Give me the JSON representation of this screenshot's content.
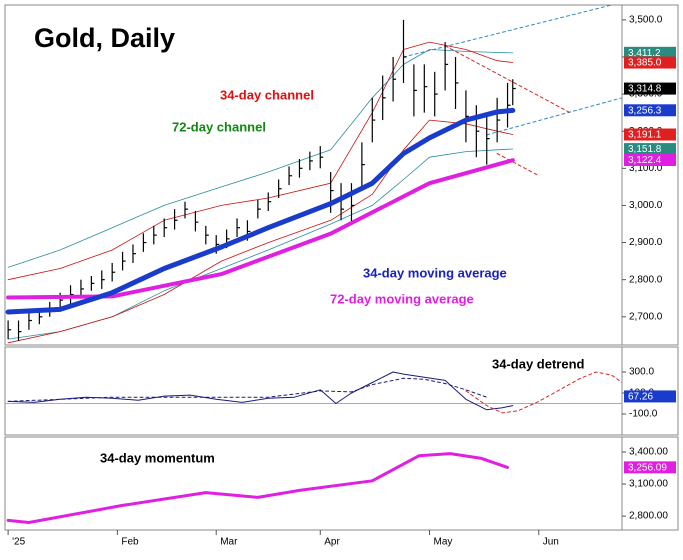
{
  "chart_data": [
    {
      "type": "ohlc",
      "title": "Gold, Daily",
      "ylim": [
        2624,
        3540
      ],
      "yticks": [
        {
          "value": 2700,
          "label": "2,700.0"
        },
        {
          "value": 2800,
          "label": "2,800.0"
        },
        {
          "value": 2900,
          "label": "2,900.0"
        },
        {
          "value": 3000,
          "label": "3,000.0"
        },
        {
          "value": 3100,
          "label": "3,100.0"
        },
        {
          "value": 3200,
          "label": "3,200.0"
        },
        {
          "value": 3300,
          "label": "3,300.0"
        },
        {
          "value": 3400,
          "label": "3,400.0"
        },
        {
          "value": 3500,
          "label": "3,500.0"
        }
      ],
      "price": {
        "color": "#000000",
        "x": [
          0,
          2,
          4,
          6,
          8,
          10,
          12,
          14,
          16,
          18,
          20,
          22,
          24,
          26,
          28,
          30,
          32,
          34,
          36,
          38,
          40,
          42,
          44,
          46,
          48,
          50,
          52,
          54,
          56,
          58,
          60,
          62,
          64,
          66,
          68,
          70,
          72,
          74,
          76,
          78,
          80,
          82,
          84,
          86,
          88,
          90,
          92,
          94,
          96,
          97
        ],
        "high": [
          2690,
          2690,
          2710,
          2720,
          2740,
          2765,
          2785,
          2800,
          2810,
          2825,
          2845,
          2875,
          2895,
          2925,
          2945,
          2965,
          2990,
          3010,
          2985,
          2945,
          2920,
          2935,
          2965,
          2960,
          3015,
          3035,
          3070,
          3105,
          3125,
          3145,
          3160,
          3090,
          3060,
          3060,
          3170,
          3290,
          3350,
          3400,
          3500,
          3380,
          3380,
          3360,
          3440,
          3400,
          3310,
          3270,
          3240,
          3290,
          3330,
          3340
        ],
        "low": [
          2640,
          2635,
          2665,
          2680,
          2700,
          2725,
          2735,
          2750,
          2770,
          2775,
          2795,
          2825,
          2845,
          2875,
          2895,
          2915,
          2935,
          2965,
          2930,
          2895,
          2870,
          2885,
          2915,
          2905,
          2965,
          2985,
          3020,
          3055,
          3075,
          3095,
          3100,
          2980,
          2960,
          2950,
          3050,
          3170,
          3230,
          3280,
          3330,
          3240,
          3250,
          3240,
          3310,
          3260,
          3170,
          3130,
          3110,
          3170,
          3210,
          3270
        ],
        "close": [
          2665,
          2660,
          2690,
          2700,
          2720,
          2745,
          2760,
          2775,
          2790,
          2800,
          2820,
          2850,
          2870,
          2900,
          2920,
          2940,
          2960,
          2990,
          2955,
          2920,
          2895,
          2910,
          2940,
          2930,
          2990,
          3010,
          3045,
          3080,
          3100,
          3120,
          3130,
          3040,
          2990,
          3000,
          3110,
          3230,
          3290,
          3340,
          3400,
          3310,
          3320,
          3300,
          3380,
          3330,
          3240,
          3200,
          3180,
          3230,
          3270,
          3315
        ]
      },
      "series": [
        {
          "color": "#2a8c9e",
          "width": 0.8,
          "dashed": false,
          "x": [
            0,
            10,
            20,
            30,
            41,
            50,
            62,
            70,
            76,
            81,
            88,
            94,
            97
          ],
          "values": [
            2833,
            2880,
            2940,
            3000,
            3050,
            3090,
            3150,
            3290,
            3380,
            3420,
            3415,
            3412,
            3411
          ]
        },
        {
          "color": "#2a8c9e",
          "width": 0.8,
          "dashed": false,
          "x": [
            0,
            10,
            20,
            30,
            41,
            50,
            62,
            70,
            76,
            81,
            88,
            94,
            97
          ],
          "values": [
            2640,
            2660,
            2700,
            2770,
            2830,
            2880,
            2950,
            3000,
            3070,
            3130,
            3145,
            3150,
            3152
          ]
        },
        {
          "color": "#cc1111",
          "width": 0.8,
          "dashed": false,
          "x": [
            0,
            10,
            20,
            30,
            41,
            50,
            62,
            70,
            76,
            81,
            88,
            94,
            97
          ],
          "values": [
            2800,
            2830,
            2880,
            2960,
            3000,
            3020,
            3060,
            3250,
            3420,
            3440,
            3420,
            3390,
            3385
          ]
        },
        {
          "color": "#cc1111",
          "width": 0.8,
          "dashed": false,
          "x": [
            0,
            10,
            20,
            30,
            41,
            50,
            62,
            70,
            76,
            81,
            88,
            94,
            97
          ],
          "values": [
            2630,
            2660,
            2700,
            2760,
            2850,
            2900,
            2960,
            3030,
            3150,
            3230,
            3220,
            3200,
            3191
          ]
        },
        {
          "color": "#2a8cc8",
          "width": 1,
          "dashed": true,
          "x": [
            76,
            116
          ],
          "values": [
            3400,
            3540
          ]
        },
        {
          "color": "#2a8cc8",
          "width": 1,
          "dashed": true,
          "x": [
            92,
            118
          ],
          "values": [
            3190,
            3290
          ]
        },
        {
          "color": "#dd2222",
          "width": 1,
          "dashed": true,
          "x": [
            84,
            108
          ],
          "values": [
            3430,
            3250
          ]
        },
        {
          "color": "#dd2222",
          "width": 1,
          "dashed": true,
          "x": [
            94,
            102
          ],
          "values": [
            3140,
            3080
          ]
        },
        {
          "color": "#e020e0",
          "width": 4,
          "dashed": false,
          "x": [
            0,
            20,
            41,
            62,
            81,
            97
          ],
          "values": [
            2752,
            2755,
            2815,
            2924,
            3060,
            3122
          ]
        },
        {
          "color": "#1a3ccc",
          "width": 5,
          "dashed": false,
          "x": [
            0,
            10,
            20,
            30,
            41,
            50,
            62,
            70,
            76,
            81,
            88,
            94,
            97
          ],
          "values": [
            2713,
            2720,
            2765,
            2830,
            2888,
            2940,
            3005,
            3060,
            3140,
            3182,
            3230,
            3252,
            3256
          ]
        }
      ],
      "value_tags": [
        {
          "value": 3411.2,
          "label": "3,411.2",
          "color": "#2a8c7e"
        },
        {
          "value": 3385.0,
          "label": "3,385.0",
          "color": "#e02020"
        },
        {
          "value": 3314.8,
          "label": "3,314.8",
          "color": "#000000"
        },
        {
          "value": 3256.3,
          "label": "3,256.3",
          "color": "#1a3ccc"
        },
        {
          "value": 3191.1,
          "label": "3,191.1",
          "color": "#e02020"
        },
        {
          "value": 3151.8,
          "label": "3,151.8",
          "color": "#2a8c7e"
        },
        {
          "value": 3122.4,
          "label": "3,122.4",
          "color": "#e020e0"
        }
      ],
      "annotations": [
        {
          "text": "34-day channel",
          "color": "#dd1111"
        },
        {
          "text": "72-day channel",
          "color": "#118811"
        },
        {
          "text": "34-day moving average",
          "color": "#1a22bb"
        },
        {
          "text": "72-day moving average",
          "color": "#e020e0"
        }
      ]
    },
    {
      "type": "line",
      "ylim": [
        -300,
        538
      ],
      "yticks": [
        {
          "value": -100,
          "label": "-100.0"
        },
        {
          "value": 100,
          "label": "100.0"
        },
        {
          "value": 300,
          "label": "300.0"
        }
      ],
      "series": [
        {
          "color": "#1a1a7a",
          "width": 1,
          "dashed": false,
          "x": [
            0,
            5,
            10,
            15,
            20,
            25,
            30,
            35,
            40,
            45,
            50,
            55,
            60,
            63,
            66,
            70,
            74,
            76,
            80,
            84,
            88,
            92,
            95,
            97
          ],
          "values": [
            20,
            10,
            40,
            60,
            50,
            30,
            70,
            80,
            40,
            10,
            50,
            60,
            130,
            0,
            100,
            200,
            300,
            280,
            250,
            220,
            40,
            -60,
            -40,
            -20
          ]
        },
        {
          "color": "#1a1a7a",
          "width": 1,
          "dashed": true,
          "x": [
            0,
            10,
            20,
            30,
            40,
            50,
            60,
            66,
            70,
            76,
            80,
            84,
            88,
            92
          ],
          "values": [
            20,
            40,
            60,
            60,
            60,
            60,
            120,
            110,
            180,
            240,
            230,
            190,
            130,
            60
          ]
        },
        {
          "color": "#dd2222",
          "width": 1,
          "dashed": true,
          "x": [
            88,
            92,
            95,
            98,
            102,
            106,
            110,
            113,
            116,
            118
          ],
          "values": [
            120,
            -20,
            -90,
            -70,
            20,
            130,
            240,
            300,
            270,
            200
          ]
        }
      ],
      "value_tags": [
        {
          "value": 67.26,
          "label": "67.26",
          "color": "#1a3ccc"
        }
      ],
      "annotations": [
        {
          "text": "34-day detrend",
          "color": "#000000"
        }
      ]
    },
    {
      "type": "line",
      "ylim": [
        2670,
        3540
      ],
      "yticks": [
        {
          "value": 2800,
          "label": "2,800.00"
        },
        {
          "value": 3100,
          "label": "3,100.00"
        },
        {
          "value": 3400,
          "label": "3,400.00"
        }
      ],
      "xlim": [
        -0.6,
        118
      ],
      "xticks": [
        {
          "value": 0,
          "label": "'25"
        },
        {
          "value": 21,
          "label": "Feb"
        },
        {
          "value": 40,
          "label": "Mar"
        },
        {
          "value": 60,
          "label": "Apr"
        },
        {
          "value": 81,
          "label": "May"
        },
        {
          "value": 102,
          "label": "Jun"
        }
      ],
      "series": [
        {
          "color": "#e020e0",
          "width": 3,
          "dashed": false,
          "x": [
            0,
            4,
            22,
            38,
            48,
            56,
            70,
            79,
            85,
            91,
            96
          ],
          "values": [
            2760,
            2740,
            2900,
            3020,
            2975,
            3040,
            3130,
            3365,
            3385,
            3340,
            3256
          ]
        }
      ],
      "value_tags": [
        {
          "value": 3256.09,
          "label": "3,256.09",
          "color": "#e020e0"
        }
      ],
      "annotations": [
        {
          "text": "34-day  momentum",
          "color": "#000000"
        }
      ]
    }
  ]
}
